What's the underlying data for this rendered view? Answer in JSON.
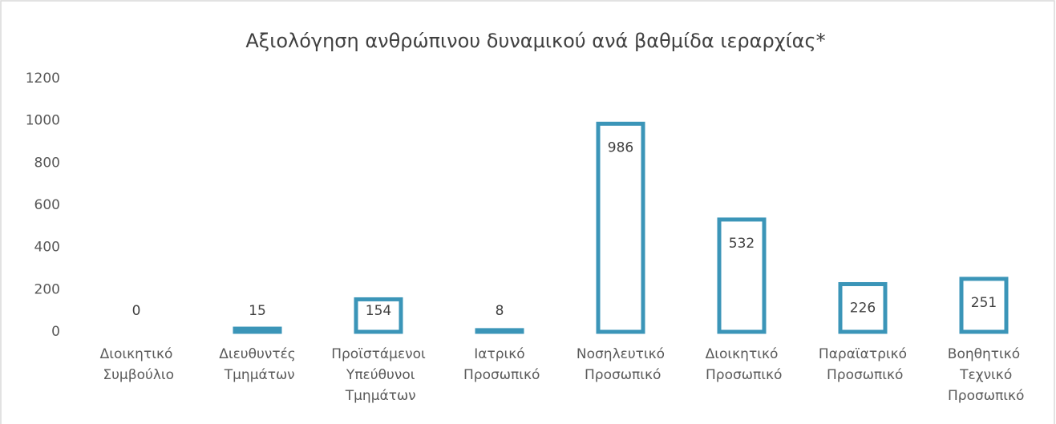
{
  "chart_data": {
    "type": "bar",
    "title": "Αξιολόγηση ανθρώπινου δυναμικού ανά βαθμίδα ιεραρχίας*",
    "categories": [
      "Διοικητικό Συμβούλιο",
      "Διευθυντές Τμημάτων",
      "Προϊστάμενοι Υπεύθυνοι Τμημάτων",
      "Ιατρικό Προσωπικό",
      "Νοσηλευτικό Προσωπικό",
      "Διοικητικό Προσωπικό",
      "Παραϊατρικό Προσωπικό",
      "Βοηθητικό Τεχνικό Προσωπικό"
    ],
    "values": [
      0,
      15,
      154,
      8,
      986,
      532,
      226,
      251
    ],
    "color": "#3b95b8",
    "ylim": [
      0,
      1200
    ],
    "yticks": [
      0,
      200,
      400,
      600,
      800,
      1000,
      1200
    ],
    "grid": false
  }
}
